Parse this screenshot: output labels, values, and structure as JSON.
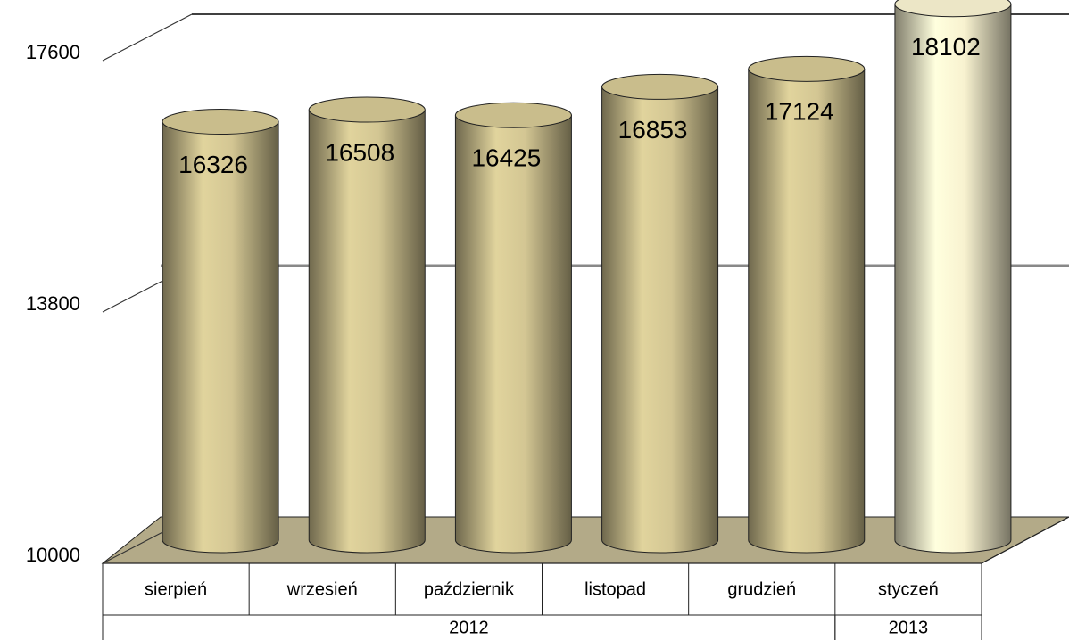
{
  "chart_data": {
    "type": "bar",
    "categories": [
      "sierpień",
      "wrzesień",
      "październik",
      "listopad",
      "grudzień",
      "styczeń"
    ],
    "groups": [
      {
        "label": "2012",
        "span": 5
      },
      {
        "label": "2013",
        "span": 1
      }
    ],
    "values": [
      16326,
      16508,
      16425,
      16853,
      17124,
      18102
    ],
    "colors": [
      "#c9bd8c",
      "#c9bd8c",
      "#c9bd8c",
      "#c9bd8c",
      "#c9bd8c",
      "#ece6c6"
    ],
    "ylim": [
      10000,
      17600
    ],
    "yticks": [
      10000,
      13800,
      17600
    ],
    "grid": true
  }
}
